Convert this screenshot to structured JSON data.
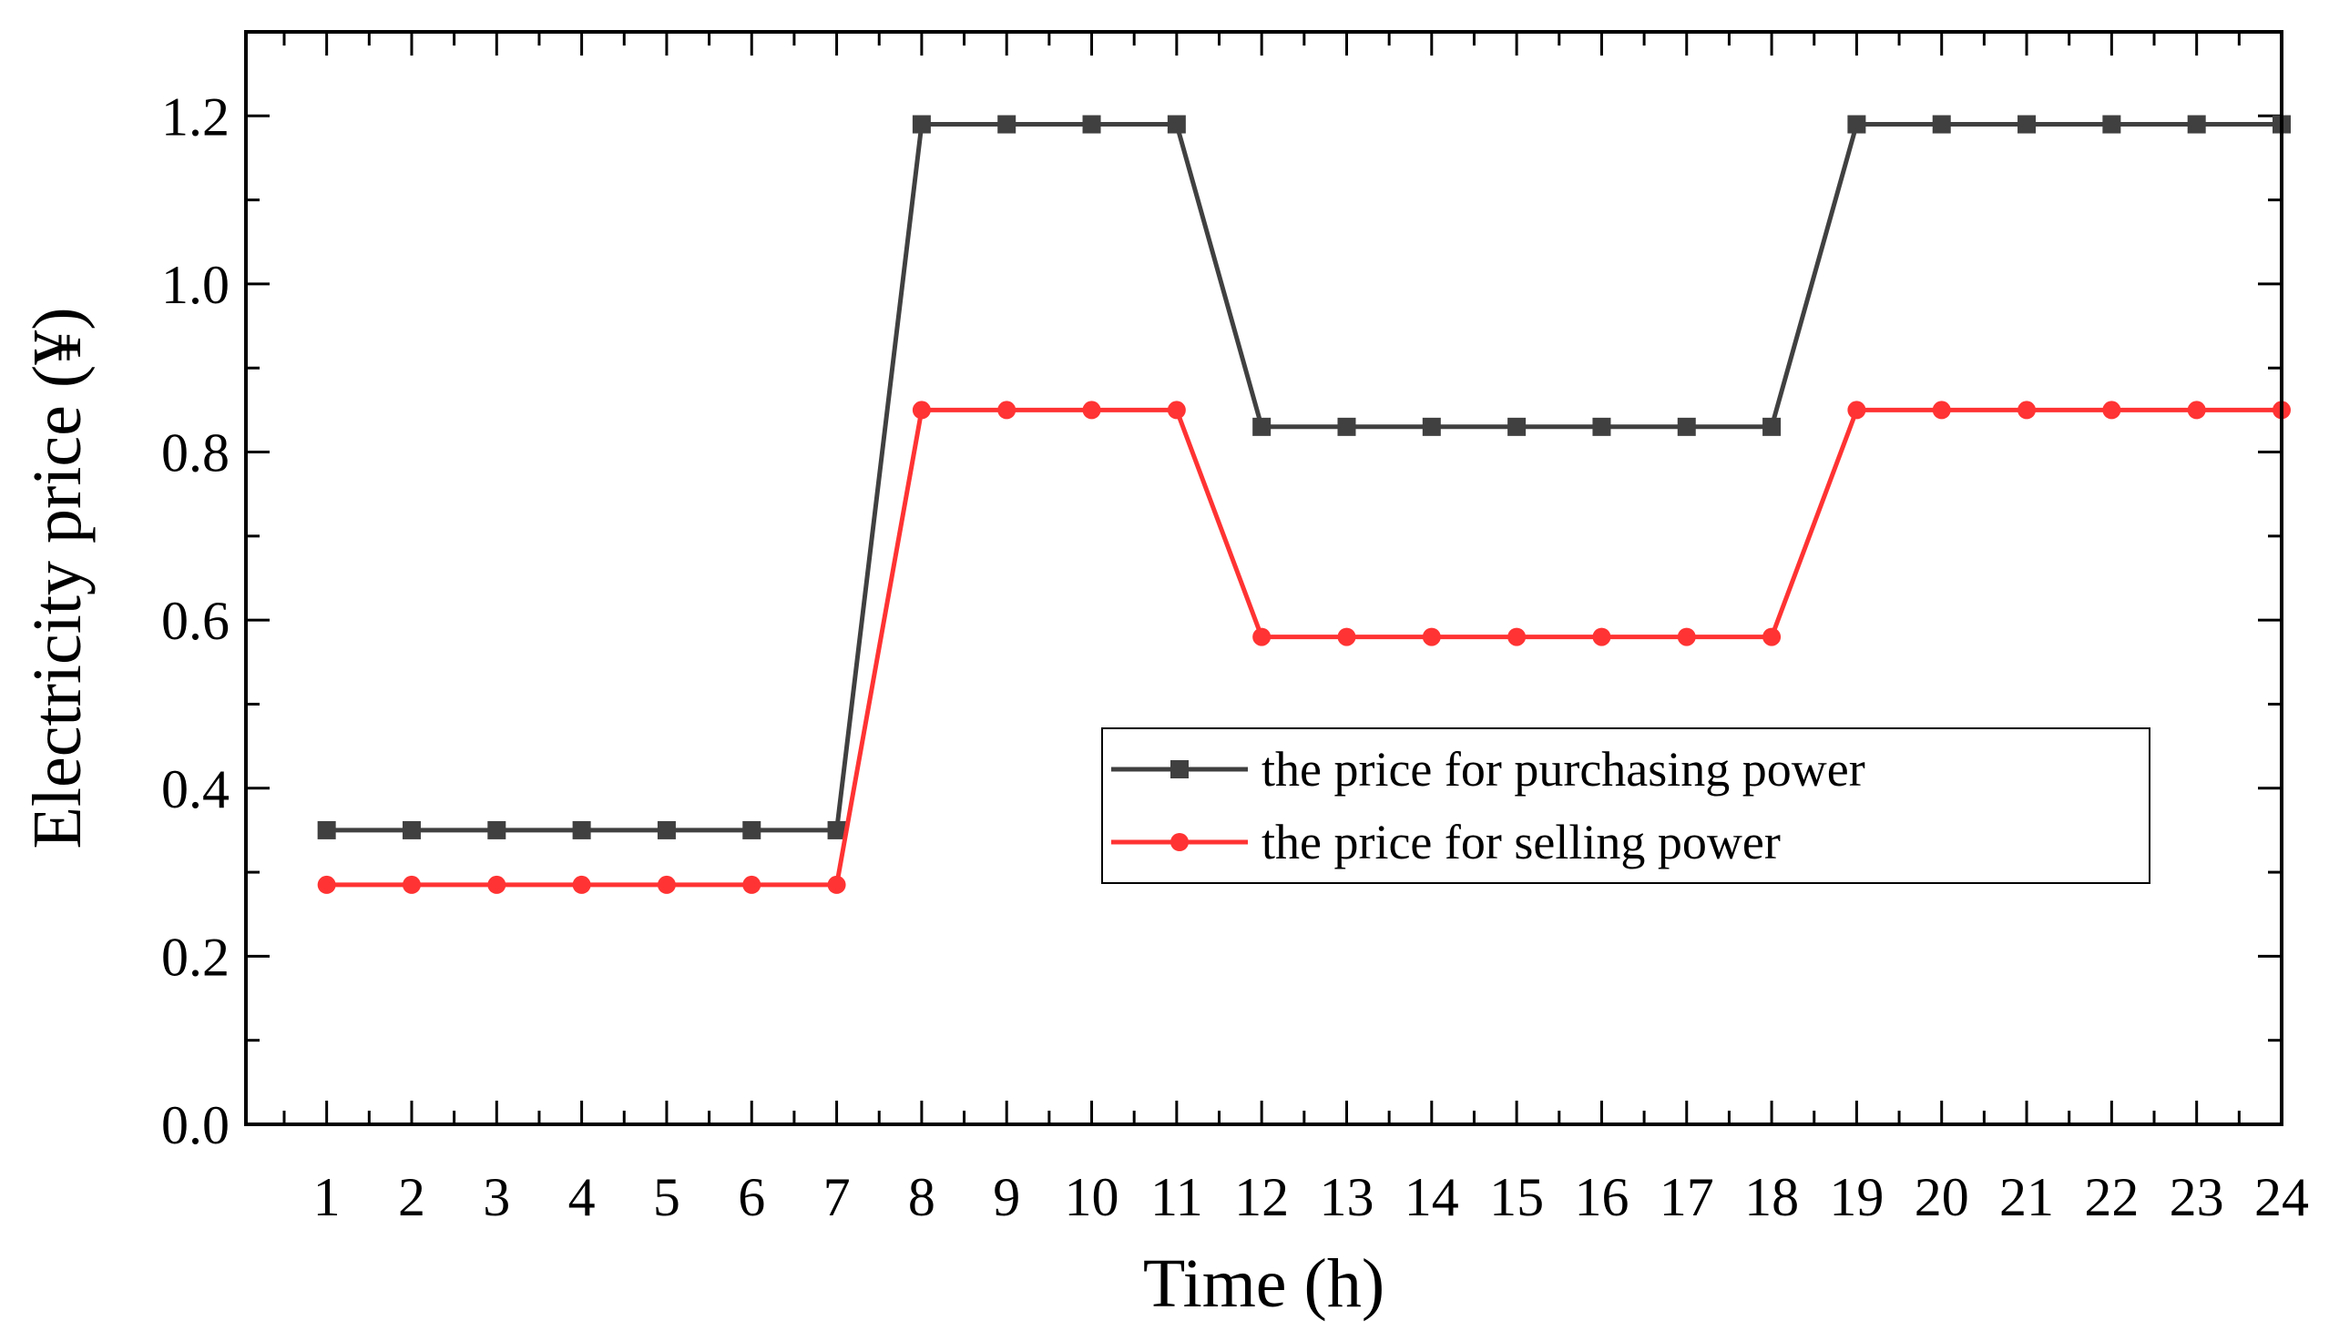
{
  "chart_data": {
    "type": "line",
    "xlabel": "Time (h)",
    "ylabel": "Electricity price (¥)",
    "x": [
      1,
      2,
      3,
      4,
      5,
      6,
      7,
      8,
      9,
      10,
      11,
      12,
      13,
      14,
      15,
      16,
      17,
      18,
      19,
      20,
      21,
      22,
      23,
      24
    ],
    "xlim": [
      0.05,
      24.0
    ],
    "ylim": [
      0,
      1.3
    ],
    "yticks": [
      "0.0",
      "0.2",
      "0.4",
      "0.6",
      "0.8",
      "1.0",
      "1.2"
    ],
    "xticks": [
      "1",
      "2",
      "3",
      "4",
      "5",
      "6",
      "7",
      "8",
      "9",
      "10",
      "11",
      "12",
      "13",
      "14",
      "15",
      "16",
      "17",
      "18",
      "19",
      "20",
      "21",
      "22",
      "23",
      "24"
    ],
    "grid": false,
    "legend_position": "center-right",
    "series": [
      {
        "name": "the price for purchasing power",
        "color": "#404040",
        "marker": "square",
        "values": [
          0.35,
          0.35,
          0.35,
          0.35,
          0.35,
          0.35,
          0.35,
          1.19,
          1.19,
          1.19,
          1.19,
          0.83,
          0.83,
          0.83,
          0.83,
          0.83,
          0.83,
          0.83,
          1.19,
          1.19,
          1.19,
          1.19,
          1.19,
          1.19
        ]
      },
      {
        "name": "the price for selling power",
        "color": "#ff3333",
        "marker": "circle",
        "values": [
          0.285,
          0.285,
          0.285,
          0.285,
          0.285,
          0.285,
          0.285,
          0.85,
          0.85,
          0.85,
          0.85,
          0.58,
          0.58,
          0.58,
          0.58,
          0.58,
          0.58,
          0.58,
          0.85,
          0.85,
          0.85,
          0.85,
          0.85,
          0.85
        ]
      }
    ]
  }
}
